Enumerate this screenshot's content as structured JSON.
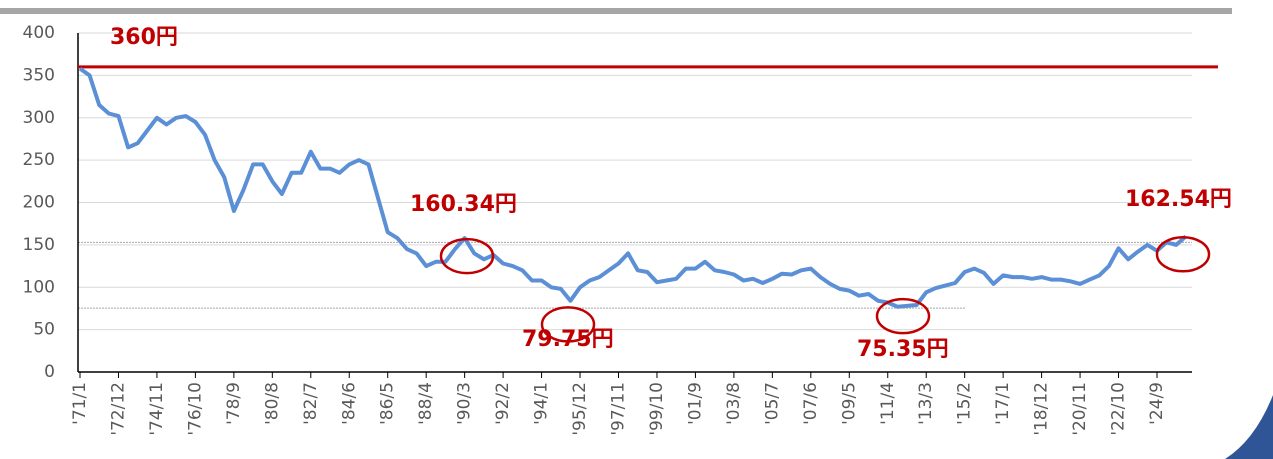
{
  "chart_data": {
    "type": "line",
    "categories": [
      "'71/1",
      null,
      null,
      null,
      "'72/12",
      null,
      null,
      null,
      "'74/11",
      null,
      null,
      null,
      "'76/10",
      null,
      null,
      null,
      "'78/9",
      null,
      null,
      null,
      "'80/8",
      null,
      null,
      null,
      "'82/7",
      null,
      null,
      null,
      "'84/6",
      null,
      null,
      null,
      "'86/5",
      null,
      null,
      null,
      "'88/4",
      null,
      null,
      null,
      "'90/3",
      null,
      null,
      null,
      "'92/2",
      null,
      null,
      null,
      "'94/1",
      null,
      null,
      null,
      "'95/12",
      null,
      null,
      null,
      "'97/11",
      null,
      null,
      null,
      "'99/10",
      null,
      null,
      null,
      "'01/9",
      null,
      null,
      null,
      "'03/8",
      null,
      null,
      null,
      "'05/7",
      null,
      null,
      null,
      "'07/6",
      null,
      null,
      null,
      "'09/5",
      null,
      null,
      null,
      "'11/4",
      null,
      null,
      null,
      "'13/3",
      null,
      null,
      null,
      "'15/2",
      null,
      null,
      null,
      "'17/1",
      null,
      null,
      null,
      "'18/12",
      null,
      null,
      null,
      "'20/11",
      null,
      null,
      null,
      "'22/10",
      null,
      null,
      null,
      "'24/9",
      null,
      null,
      null
    ],
    "series": [
      {
        "color": "#5b8fd6",
        "values": [
          358,
          350,
          315,
          305,
          302,
          265,
          270,
          285,
          300,
          292,
          300,
          302,
          295,
          280,
          250,
          230,
          190,
          215,
          245,
          245,
          225,
          210,
          235,
          235,
          260,
          240,
          240,
          235,
          245,
          250,
          245,
          205,
          165,
          158,
          145,
          140,
          125,
          130,
          130,
          145,
          158,
          140,
          133,
          138,
          128,
          125,
          120,
          108,
          108,
          100,
          98,
          84,
          100,
          108,
          112,
          120,
          128,
          140,
          120,
          118,
          106,
          108,
          110,
          122,
          122,
          130,
          120,
          118,
          115,
          108,
          110,
          105,
          110,
          116,
          115,
          120,
          122,
          112,
          104,
          98,
          96,
          90,
          92,
          84,
          82,
          77,
          78,
          79,
          94,
          99,
          102,
          105,
          118,
          122,
          117,
          104,
          114,
          112,
          112,
          110,
          112,
          109,
          109,
          107,
          104,
          109,
          114,
          125,
          146,
          133,
          142,
          150,
          143,
          153,
          150,
          160
        ]
      }
    ],
    "ylim": [
      0,
      400
    ],
    "yticks": [
      0,
      50,
      100,
      150,
      200,
      250,
      300,
      350,
      400
    ],
    "grid": true,
    "hline": {
      "value": 360,
      "label": "360円",
      "color": "#c00000"
    },
    "reference_lines": [
      153,
      75.35
    ],
    "annotations": [
      {
        "label": "160.34円",
        "value": 160.34
      },
      {
        "label": "79.75円",
        "value": 79.75
      },
      {
        "label": "75.35円",
        "value": 75.35
      },
      {
        "label": "162.54円",
        "value": 162.54
      }
    ]
  }
}
